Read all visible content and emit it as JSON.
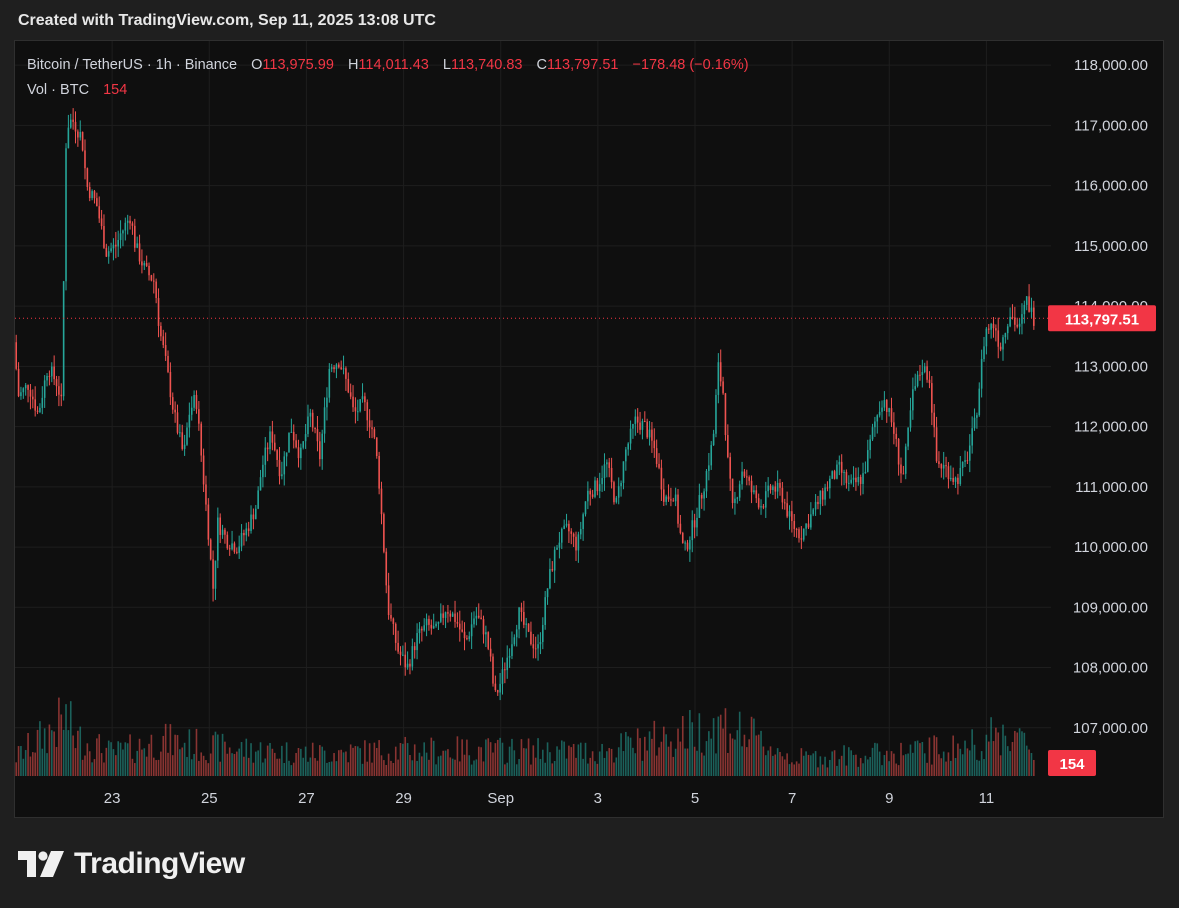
{
  "caption": "Created with TradingView.com, Sep 11, 2025 13:08 UTC",
  "legend": {
    "symbol": "Bitcoin / TetherUS · 1h · Binance",
    "open_label": "O",
    "open": "113,975.99",
    "high_label": "H",
    "high": "114,011.43",
    "low_label": "L",
    "low": "113,740.83",
    "close_label": "C",
    "close": "113,797.51",
    "change": "−178.48 (−0.16%)",
    "volume_label": "Vol · BTC",
    "volume": "154"
  },
  "brand": {
    "name": "TradingView",
    "logo_icon": "tradingview-logo-icon"
  },
  "colors": {
    "up": "#26a69a",
    "down": "#ef5350",
    "accent": "#f23645",
    "background": "#0f0f0f",
    "grid": "#1e1e1e",
    "axis_text": "#d1d4dc"
  },
  "chart_data": {
    "type": "candlestick",
    "symbol": "BTCUSDT",
    "interval": "1h",
    "ylim": [
      106200,
      118400
    ],
    "y_ticks": [
      "118,000.00",
      "117,000.00",
      "116,000.00",
      "115,000.00",
      "114,000.00",
      "113,000.00",
      "112,000.00",
      "111,000.00",
      "110,000.00",
      "109,000.00",
      "108,000.00",
      "107,000.00"
    ],
    "y_tick_values": [
      118000,
      117000,
      116000,
      115000,
      114000,
      113000,
      112000,
      111000,
      110000,
      109000,
      108000,
      107000
    ],
    "x_ticks": [
      "23",
      "25",
      "27",
      "29",
      "Sep",
      "3",
      "5",
      "7",
      "9",
      "11"
    ],
    "x_tick_days": [
      2,
      4,
      6,
      8,
      10,
      12,
      14,
      16,
      18,
      20
    ],
    "x_range_days": [
      0,
      21
    ],
    "last_price": 113797.51,
    "last_price_label": "113,797.51",
    "last_volume_label": "154",
    "price_path": [
      [
        0.0,
        113400
      ],
      [
        0.1,
        112500
      ],
      [
        0.3,
        112700
      ],
      [
        0.5,
        112200
      ],
      [
        0.7,
        113000
      ],
      [
        0.9,
        112700
      ],
      [
        1.0,
        112300
      ],
      [
        1.05,
        116400
      ],
      [
        1.1,
        117000
      ],
      [
        1.2,
        117100
      ],
      [
        1.4,
        116800
      ],
      [
        1.5,
        116000
      ],
      [
        1.7,
        115700
      ],
      [
        1.9,
        114900
      ],
      [
        2.1,
        115000
      ],
      [
        2.2,
        115200
      ],
      [
        2.4,
        115500
      ],
      [
        2.5,
        115000
      ],
      [
        2.7,
        114600
      ],
      [
        2.9,
        114400
      ],
      [
        3.0,
        113600
      ],
      [
        3.1,
        113200
      ],
      [
        3.3,
        112200
      ],
      [
        3.5,
        111500
      ],
      [
        3.6,
        112200
      ],
      [
        3.75,
        112500
      ],
      [
        3.85,
        111600
      ],
      [
        4.0,
        110300
      ],
      [
        4.1,
        109300
      ],
      [
        4.2,
        110400
      ],
      [
        4.4,
        110100
      ],
      [
        4.6,
        110000
      ],
      [
        4.8,
        110300
      ],
      [
        5.0,
        110700
      ],
      [
        5.1,
        111300
      ],
      [
        5.3,
        111900
      ],
      [
        5.5,
        111200
      ],
      [
        5.7,
        112000
      ],
      [
        5.9,
        111500
      ],
      [
        6.1,
        112200
      ],
      [
        6.3,
        111500
      ],
      [
        6.5,
        113000
      ],
      [
        6.7,
        113100
      ],
      [
        6.9,
        112600
      ],
      [
        7.0,
        112200
      ],
      [
        7.2,
        112400
      ],
      [
        7.4,
        111900
      ],
      [
        7.5,
        111300
      ],
      [
        7.6,
        110200
      ],
      [
        7.7,
        109000
      ],
      [
        7.9,
        108300
      ],
      [
        8.1,
        108000
      ],
      [
        8.3,
        108500
      ],
      [
        8.5,
        108700
      ],
      [
        8.7,
        108600
      ],
      [
        8.9,
        109000
      ],
      [
        9.1,
        108800
      ],
      [
        9.3,
        108400
      ],
      [
        9.5,
        108900
      ],
      [
        9.7,
        108600
      ],
      [
        9.8,
        108200
      ],
      [
        9.9,
        107500
      ],
      [
        10.0,
        107700
      ],
      [
        10.2,
        108300
      ],
      [
        10.4,
        108900
      ],
      [
        10.6,
        108500
      ],
      [
        10.8,
        108300
      ],
      [
        11.0,
        109400
      ],
      [
        11.2,
        110100
      ],
      [
        11.4,
        110300
      ],
      [
        11.6,
        110000
      ],
      [
        11.8,
        110900
      ],
      [
        12.0,
        111000
      ],
      [
        12.2,
        111400
      ],
      [
        12.4,
        110700
      ],
      [
        12.6,
        111600
      ],
      [
        12.8,
        112100
      ],
      [
        13.0,
        112000
      ],
      [
        13.2,
        111600
      ],
      [
        13.4,
        110800
      ],
      [
        13.6,
        110900
      ],
      [
        13.7,
        110300
      ],
      [
        13.8,
        109900
      ],
      [
        14.0,
        110400
      ],
      [
        14.2,
        111000
      ],
      [
        14.4,
        111800
      ],
      [
        14.5,
        113000
      ],
      [
        14.6,
        112600
      ],
      [
        14.7,
        111400
      ],
      [
        14.8,
        110600
      ],
      [
        15.0,
        111300
      ],
      [
        15.2,
        110900
      ],
      [
        15.4,
        110700
      ],
      [
        15.6,
        111000
      ],
      [
        15.8,
        110900
      ],
      [
        16.0,
        110400
      ],
      [
        16.2,
        110200
      ],
      [
        16.4,
        110500
      ],
      [
        16.6,
        110800
      ],
      [
        16.8,
        111100
      ],
      [
        17.0,
        111300
      ],
      [
        17.2,
        111000
      ],
      [
        17.4,
        111100
      ],
      [
        17.5,
        111200
      ],
      [
        17.7,
        112000
      ],
      [
        17.9,
        112500
      ],
      [
        18.1,
        112000
      ],
      [
        18.3,
        111100
      ],
      [
        18.5,
        112500
      ],
      [
        18.7,
        113000
      ],
      [
        18.85,
        112800
      ],
      [
        19.0,
        111400
      ],
      [
        19.2,
        111300
      ],
      [
        19.4,
        111100
      ],
      [
        19.6,
        111400
      ],
      [
        19.8,
        112100
      ],
      [
        20.0,
        113600
      ],
      [
        20.2,
        113700
      ],
      [
        20.3,
        113300
      ],
      [
        20.5,
        113900
      ],
      [
        20.7,
        113600
      ],
      [
        20.85,
        114100
      ],
      [
        21.0,
        113800
      ]
    ],
    "volume_path": [
      [
        0.0,
        60
      ],
      [
        1.05,
        180
      ],
      [
        1.2,
        120
      ],
      [
        2.0,
        70
      ],
      [
        3.0,
        110
      ],
      [
        4.0,
        90
      ],
      [
        6.0,
        70
      ],
      [
        8.0,
        80
      ],
      [
        10.0,
        80
      ],
      [
        12.0,
        75
      ],
      [
        14.6,
        160
      ],
      [
        16.0,
        55
      ],
      [
        18.0,
        70
      ],
      [
        19.5,
        90
      ],
      [
        20.5,
        140
      ],
      [
        21.0,
        60
      ]
    ]
  }
}
